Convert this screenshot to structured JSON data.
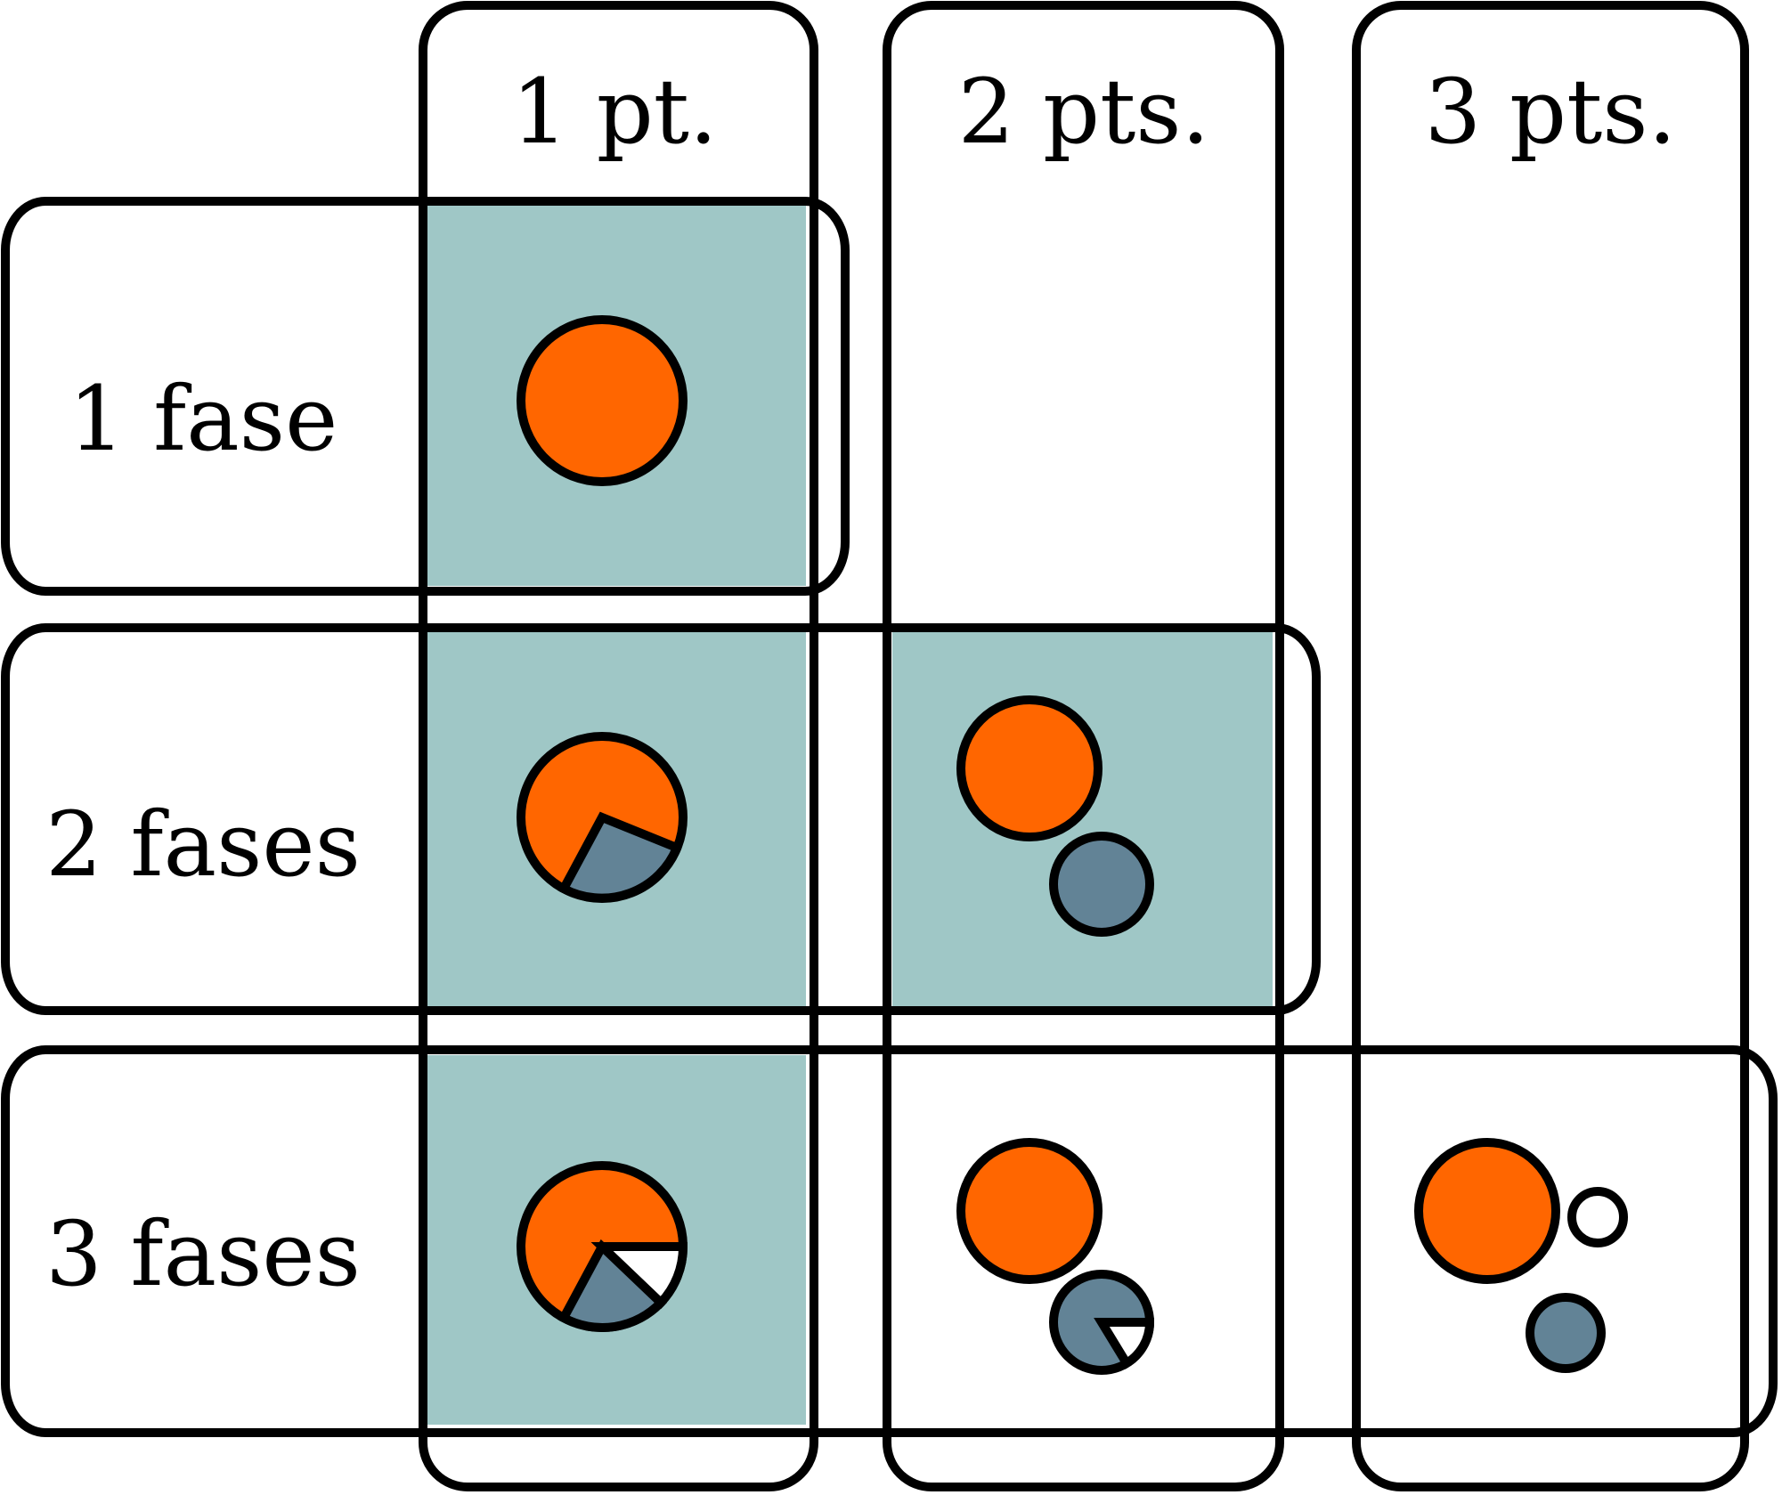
{
  "columns": {
    "c1": "1 pt.",
    "c2": "2 pts.",
    "c3": "3 pts."
  },
  "rows": {
    "r1": "1 fase",
    "r2": "2 fases",
    "r3": "3 fases"
  },
  "colors": {
    "highlight": "#9fc7c6",
    "phase_1": "#ff6600",
    "phase_2": "#628396",
    "phase_3": "#ffffff",
    "outline": "#000000"
  },
  "highlighted_cells": [
    "1 fase / 1 pt.",
    "2 fases / 1 pt.",
    "2 fases / 2 pts.",
    "3 fases / 1 pt."
  ]
}
